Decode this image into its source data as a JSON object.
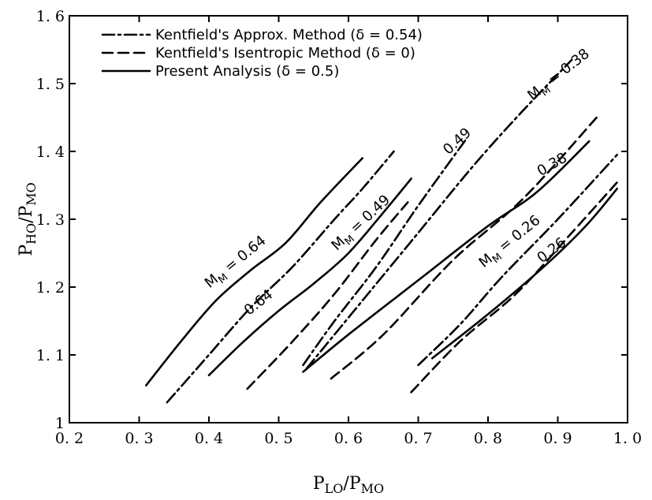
{
  "chart_data": {
    "type": "line",
    "title": "",
    "xlabel": "P",
    "xlabel_sub": "LO",
    "xlabel_den": "/P",
    "xlabel_den_sub": "MO",
    "ylabel": "P",
    "ylabel_sub": "HO",
    "ylabel_den": "/P",
    "ylabel_den_sub": "MO",
    "xlim": [
      0.2,
      1.0
    ],
    "ylim": [
      1.0,
      1.6
    ],
    "grid": false,
    "legend_position": "top-left",
    "x_ticks": [
      {
        "value": 0.2,
        "label": "0. 2"
      },
      {
        "value": 0.3,
        "label": "0. 3"
      },
      {
        "value": 0.4,
        "label": "0. 4"
      },
      {
        "value": 0.5,
        "label": "0. 5"
      },
      {
        "value": 0.6,
        "label": "0. 6"
      },
      {
        "value": 0.7,
        "label": "0. 7"
      },
      {
        "value": 0.8,
        "label": "0. 8"
      },
      {
        "value": 0.9,
        "label": "0. 9"
      },
      {
        "value": 1.0,
        "label": "1. 0"
      }
    ],
    "y_ticks": [
      {
        "value": 1.0,
        "label": "1"
      },
      {
        "value": 1.1,
        "label": "1. 1"
      },
      {
        "value": 1.2,
        "label": "1. 2"
      },
      {
        "value": 1.3,
        "label": "1. 3"
      },
      {
        "value": 1.4,
        "label": "1. 4"
      },
      {
        "value": 1.5,
        "label": "1. 5"
      },
      {
        "value": 1.6,
        "label": "1. 6"
      }
    ],
    "legend": [
      {
        "style": "dashdot",
        "label": "Kentfield's Approx. Method (δ = 0.54)"
      },
      {
        "style": "dashed",
        "label": "Kentfield's Isentropic Method (δ = 0)"
      },
      {
        "style": "solid",
        "label": "Present Analysis (δ = 0.5)"
      }
    ],
    "series": [
      {
        "style": "solid",
        "mach": 0.64,
        "x": [
          0.31,
          0.36,
          0.41,
          0.46,
          0.51,
          0.56,
          0.62
        ],
        "y": [
          1.055,
          1.12,
          1.18,
          1.225,
          1.265,
          1.325,
          1.39
        ]
      },
      {
        "style": "dashdot",
        "mach": 0.64,
        "x": [
          0.34,
          0.4,
          0.46,
          0.52,
          0.58,
          0.62,
          0.665
        ],
        "y": [
          1.03,
          1.1,
          1.17,
          1.23,
          1.3,
          1.345,
          1.4
        ]
      },
      {
        "style": "solid",
        "mach": 0.49,
        "x": [
          0.4,
          0.45,
          0.5,
          0.55,
          0.6,
          0.65,
          0.69
        ],
        "y": [
          1.07,
          1.12,
          1.165,
          1.205,
          1.25,
          1.31,
          1.36
        ]
      },
      {
        "style": "dashed",
        "mach": 0.49,
        "x": [
          0.455,
          0.52,
          0.58,
          0.64,
          0.685
        ],
        "y": [
          1.05,
          1.12,
          1.19,
          1.27,
          1.325
        ]
      },
      {
        "style": "dashdot",
        "mach": 0.49,
        "x": [
          0.535,
          0.58,
          0.64,
          0.7,
          0.77
        ],
        "y": [
          1.085,
          1.15,
          1.23,
          1.32,
          1.42
        ]
      },
      {
        "style": "solid",
        "mach": 0.38,
        "x": [
          0.535,
          0.6,
          0.7,
          0.8,
          0.87,
          0.945
        ],
        "y": [
          1.075,
          1.13,
          1.21,
          1.29,
          1.34,
          1.415
        ]
      },
      {
        "style": "dashdot",
        "mach": 0.38,
        "x": [
          0.54,
          0.62,
          0.7,
          0.78,
          0.85,
          0.92
        ],
        "y": [
          1.08,
          1.18,
          1.28,
          1.38,
          1.46,
          1.535
        ]
      },
      {
        "style": "dashed",
        "mach": 0.38,
        "x": [
          0.575,
          0.65,
          0.75,
          0.85,
          0.96
        ],
        "y": [
          1.065,
          1.13,
          1.24,
          1.33,
          1.455
        ]
      },
      {
        "style": "solid",
        "mach": 0.26,
        "x": [
          0.72,
          0.8,
          0.88,
          0.94,
          0.985
        ],
        "y": [
          1.095,
          1.16,
          1.23,
          1.29,
          1.345
        ]
      },
      {
        "style": "dashdot",
        "mach": 0.26,
        "x": [
          0.7,
          0.76,
          0.82,
          0.9,
          0.985
        ],
        "y": [
          1.085,
          1.145,
          1.215,
          1.3,
          1.395
        ]
      },
      {
        "style": "dashed",
        "mach": 0.26,
        "x": [
          0.69,
          0.76,
          0.84,
          0.92,
          0.99
        ],
        "y": [
          1.045,
          1.12,
          1.19,
          1.28,
          1.36
        ]
      }
    ],
    "annotations": [
      {
        "prefix": "M",
        "sub": "M",
        "text": " = 0.64",
        "x": 0.442,
        "y": 1.232,
        "angle": -39
      },
      {
        "prefix": "",
        "sub": "",
        "text": "0.64",
        "x": 0.475,
        "y": 1.172,
        "angle": -38
      },
      {
        "prefix": "M",
        "sub": "M",
        "text": " = 0.49",
        "x": 0.622,
        "y": 1.29,
        "angle": -43
      },
      {
        "prefix": "",
        "sub": "",
        "text": "0.49",
        "x": 0.76,
        "y": 1.41,
        "angle": -42
      },
      {
        "prefix": "M",
        "sub": "M",
        "text": " = 0.38",
        "x": 0.905,
        "y": 1.508,
        "angle": -38
      },
      {
        "prefix": "",
        "sub": "",
        "text": "0.38",
        "x": 0.895,
        "y": 1.375,
        "angle": -30
      },
      {
        "prefix": "M",
        "sub": "M",
        "text": " = 0.26",
        "x": 0.835,
        "y": 1.262,
        "angle": -39
      },
      {
        "prefix": "",
        "sub": "",
        "text": "0.26",
        "x": 0.895,
        "y": 1.249,
        "angle": -37
      }
    ]
  }
}
